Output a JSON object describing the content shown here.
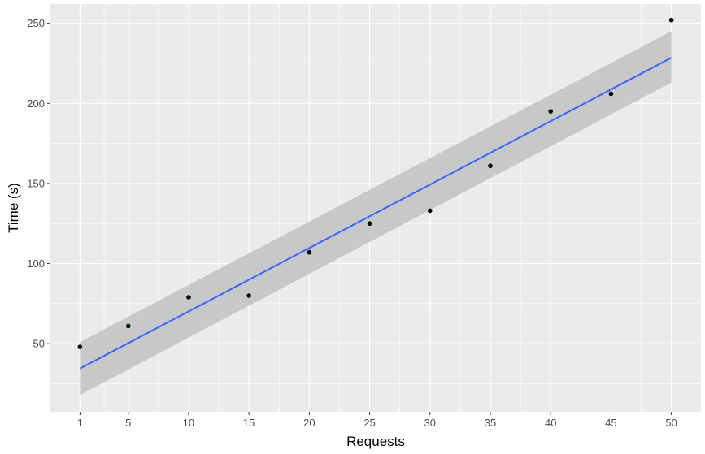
{
  "chart_data": {
    "type": "scatter",
    "title": "",
    "xlabel": "Requests",
    "ylabel": "Time (s)",
    "x_ticks": [
      1,
      5,
      10,
      15,
      20,
      25,
      30,
      35,
      40,
      45,
      50
    ],
    "x_tick_labels": [
      "1",
      "5",
      "10",
      "15",
      "20",
      "25",
      "30",
      "35",
      "40",
      "45",
      "50"
    ],
    "y_ticks": [
      50,
      100,
      150,
      200,
      250
    ],
    "y_tick_labels": [
      "50",
      "100",
      "150",
      "200",
      "250"
    ],
    "xlim": [
      -1.45,
      52.45
    ],
    "ylim": [
      7.5,
      262
    ],
    "grid": true,
    "legend": "none",
    "series": [
      {
        "type": "scatter",
        "x": [
          1,
          5,
          10,
          15,
          20,
          25,
          30,
          35,
          40,
          45,
          50
        ],
        "y": [
          48,
          61,
          79,
          80,
          107,
          125,
          133,
          161,
          195,
          206,
          252
        ]
      }
    ],
    "fit": {
      "method": "linear regression with confidence band",
      "x": [
        1,
        50
      ],
      "y": [
        34.5,
        228.5
      ],
      "band_lower": [
        18,
        213
      ],
      "band_upper": [
        51,
        245
      ]
    },
    "colors": {
      "panel_background": "#ebebeb",
      "grid": "#ffffff",
      "points": "#000000",
      "fit_line": "#3366ff",
      "band": "#c6c6c6"
    }
  }
}
